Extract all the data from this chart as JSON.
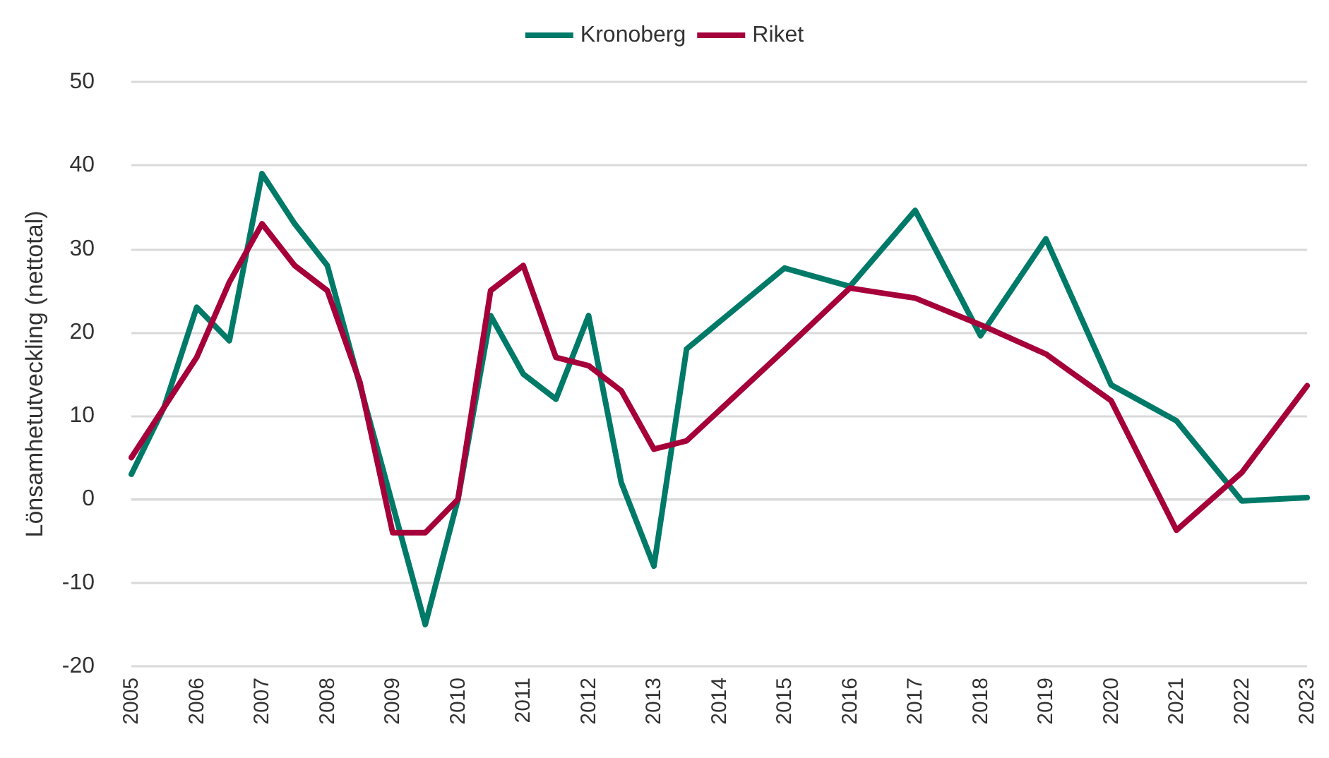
{
  "chart_data": {
    "type": "line",
    "ylabel": "Lönsamhetutveckling (nettotal)",
    "xlim": [
      2005,
      2023
    ],
    "xticks": [
      2005,
      2006,
      2007,
      2008,
      2009,
      2010,
      2011,
      2012,
      2013,
      2014,
      2015,
      2016,
      2017,
      2018,
      2019,
      2020,
      2021,
      2022,
      2023
    ],
    "ylim": [
      -20,
      50
    ],
    "yticks": [
      -20,
      -10,
      0,
      10,
      20,
      30,
      40,
      50
    ],
    "grid": "y",
    "legend": "top",
    "marker": "none",
    "line_style": "solid",
    "series": [
      {
        "name": "Kronoberg",
        "color": "#007a68",
        "x": [
          2005,
          2005.5,
          2006,
          2006.5,
          2007,
          2007.5,
          2008,
          2009.5,
          2010,
          2010.5,
          2011,
          2011.5,
          2012,
          2012.5,
          2013,
          2013.5,
          2015,
          2016,
          2017,
          2018,
          2019,
          2020,
          2021,
          2022,
          2023
        ],
        "values": [
          3,
          11,
          23,
          19,
          39,
          33,
          28,
          -15,
          0,
          22,
          15,
          12,
          22,
          2,
          -8,
          18,
          27.7,
          25.5,
          34.6,
          19.6,
          31.2,
          13.7,
          9.4,
          -0.2,
          0.2
        ]
      },
      {
        "name": "Riket",
        "color": "#a6003a",
        "x": [
          2005,
          2005.5,
          2006,
          2006.5,
          2007,
          2007.5,
          2008,
          2008.5,
          2009,
          2009.5,
          2010,
          2010.5,
          2011,
          2011.5,
          2012,
          2012.5,
          2013,
          2013.5,
          2015,
          2016,
          2017,
          2018,
          2019,
          2020,
          2021,
          2022,
          2023
        ],
        "values": [
          5,
          11,
          17,
          26,
          33,
          28,
          25,
          14,
          -4,
          -4,
          0,
          25,
          28,
          17,
          16,
          13,
          6,
          7,
          17.9,
          25.3,
          24.1,
          20.9,
          17.4,
          11.8,
          -3.7,
          3.2,
          13.6
        ]
      }
    ]
  }
}
